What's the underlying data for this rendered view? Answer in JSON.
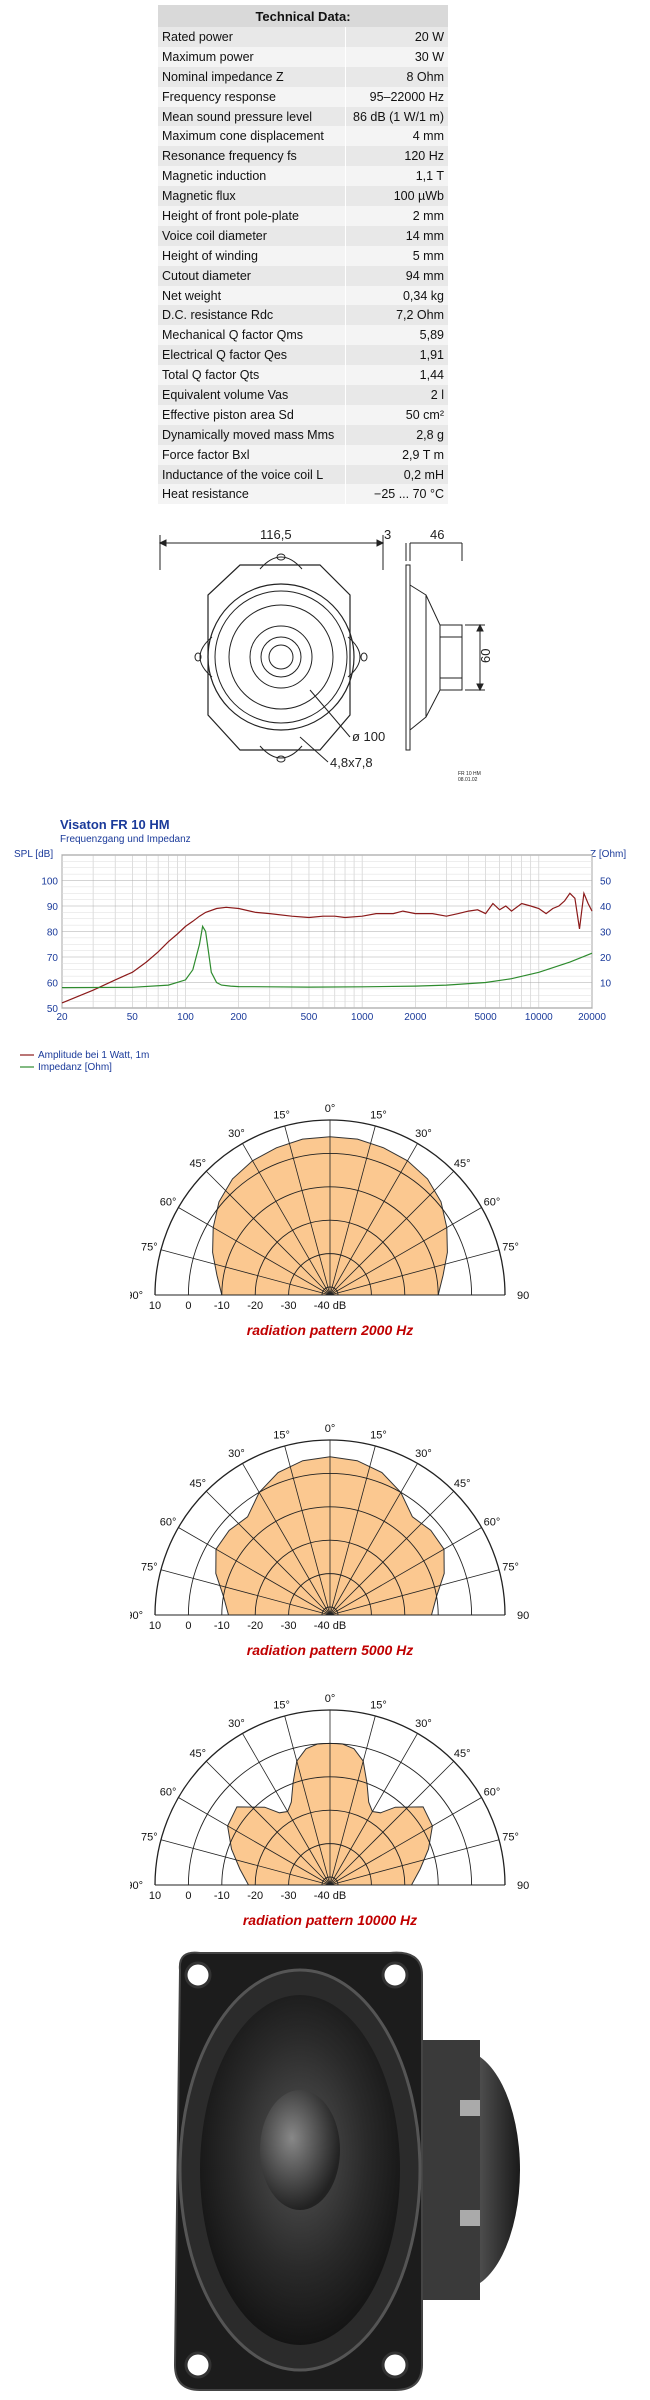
{
  "technical_data": {
    "title": "Technical Data:",
    "rows": [
      [
        "Rated power",
        "20 W"
      ],
      [
        "Maximum power",
        "30 W"
      ],
      [
        "Nominal impedance Z",
        "8 Ohm"
      ],
      [
        "Frequency response",
        "95–22000 Hz"
      ],
      [
        "Mean sound pressure level",
        "86 dB (1 W/1 m)"
      ],
      [
        "Maximum cone displacement",
        "4 mm"
      ],
      [
        "Resonance frequency fs",
        "120 Hz"
      ],
      [
        "Magnetic induction",
        "1,1 T"
      ],
      [
        "Magnetic flux",
        "100 µWb"
      ],
      [
        "Height of front pole-plate",
        "2 mm"
      ],
      [
        "Voice coil diameter",
        "14 mm"
      ],
      [
        "Height of winding",
        "5 mm"
      ],
      [
        "Cutout diameter",
        "94 mm"
      ],
      [
        "Net weight",
        "0,34 kg"
      ],
      [
        "D.C. resistance Rdc",
        "7,2 Ohm"
      ],
      [
        "Mechanical Q factor Qms",
        "5,89"
      ],
      [
        "Electrical Q factor Qes",
        "1,91"
      ],
      [
        "Total Q factor Qts",
        "1,44"
      ],
      [
        "Equivalent volume Vas",
        "2 l"
      ],
      [
        "Effective piston area Sd",
        "50 cm²"
      ],
      [
        "Dynamically moved mass Mms",
        "2,8 g"
      ],
      [
        "Force factor Bxl",
        "2,9 T m"
      ],
      [
        "Inductance of the voice coil L",
        "0,2 mH"
      ],
      [
        "Heat resistance",
        "−25 ... 70 °C"
      ]
    ]
  },
  "drawing": {
    "dim_width": "116,5",
    "dim_front": "3",
    "dim_depth": "46",
    "dim_height": "60",
    "dim_diameter": "ø 100",
    "dim_holes": "4,8x7,8",
    "stamp_line1": "FR 10 HM",
    "stamp_line2": "08.01.02"
  },
  "chart_data": [
    {
      "type": "line",
      "title": "Visaton FR 10 HM",
      "subtitle": "Frequenzgang und Impedanz",
      "ylabel": "SPL [dB]",
      "y2label": "Z [Ohm]",
      "x_scale": "log",
      "xlim": [
        20,
        20000
      ],
      "ylim": [
        50,
        110
      ],
      "y2lim": [
        0,
        60
      ],
      "x_ticks": [
        20,
        50,
        100,
        200,
        500,
        1000,
        2000,
        5000,
        10000,
        20000
      ],
      "x_tick_labels": [
        "20",
        "50",
        "100",
        "200",
        "500",
        "1000",
        "2000",
        "5000",
        "10000",
        "20000"
      ],
      "y_ticks": [
        50,
        60,
        70,
        80,
        90,
        100
      ],
      "y2_ticks": [
        10,
        20,
        30,
        40,
        50
      ],
      "grid": true,
      "legend_position": "bottom-left",
      "series": [
        {
          "name": "Amplitude bei 1 Watt, 1m",
          "color": "#8b1a1a",
          "axis": "left",
          "x": [
            20,
            30,
            40,
            50,
            60,
            70,
            80,
            90,
            100,
            110,
            120,
            130,
            150,
            170,
            200,
            250,
            300,
            400,
            500,
            600,
            700,
            800,
            1000,
            1200,
            1500,
            1700,
            2000,
            2500,
            3000,
            3500,
            4000,
            4500,
            5000,
            5500,
            6000,
            6500,
            7000,
            8000,
            9000,
            10000,
            11000,
            12000,
            13000,
            14000,
            15000,
            16000,
            17000,
            18000,
            19000,
            20000
          ],
          "y": [
            52,
            57,
            61,
            64,
            68,
            72,
            76,
            79,
            82,
            84,
            86,
            87.5,
            89,
            89.5,
            89,
            87.5,
            87,
            86,
            85.5,
            86,
            86,
            85.5,
            86,
            87,
            87,
            88,
            87,
            87,
            86,
            87,
            88,
            88.5,
            87,
            91,
            88.5,
            90,
            88,
            91,
            90,
            89,
            87,
            89,
            90,
            92,
            95,
            93,
            81,
            95,
            91,
            88
          ]
        },
        {
          "name": "Impedanz [Ohm]",
          "color": "#2e8b2e",
          "axis": "right",
          "x": [
            20,
            50,
            80,
            100,
            110,
            120,
            125,
            130,
            135,
            140,
            150,
            160,
            180,
            200,
            300,
            500,
            1000,
            2000,
            3000,
            5000,
            7000,
            10000,
            15000,
            20000
          ],
          "y": [
            8.0,
            8.1,
            9.0,
            11.0,
            15.0,
            25.0,
            32.0,
            30.0,
            22.0,
            14.0,
            10.0,
            9.0,
            8.6,
            8.4,
            8.3,
            8.2,
            8.3,
            8.6,
            9.0,
            10.0,
            11.5,
            14.0,
            18.0,
            21.5
          ]
        }
      ]
    },
    {
      "type": "polar",
      "title": "radiation pattern 2000 Hz",
      "angle_labels": [
        "0°",
        "15°",
        "30°",
        "45°",
        "60°",
        "75°",
        "90°"
      ],
      "radial_labels": [
        "10",
        "0",
        "-10",
        "-20",
        "-30",
        "-40 dB"
      ],
      "angles_deg": [
        0,
        10,
        20,
        30,
        40,
        50,
        60,
        70,
        80,
        90
      ],
      "level_db": [
        5,
        5,
        4.5,
        4,
        3,
        1,
        -2,
        -5,
        -8,
        -10
      ],
      "fill_color": "#fbc890"
    },
    {
      "type": "polar",
      "title": "radiation pattern 5000 Hz",
      "angle_labels": [
        "0°",
        "15°",
        "30°",
        "45°",
        "60°",
        "75°",
        "90°"
      ],
      "radial_labels": [
        "10",
        "0",
        "-10",
        "-20",
        "-30",
        "-40 dB"
      ],
      "angles_deg": [
        0,
        10,
        20,
        30,
        40,
        50,
        60,
        70,
        80,
        90
      ],
      "level_db": [
        5,
        4.5,
        3,
        0,
        -4,
        -3,
        -3,
        -6,
        -10,
        -12
      ],
      "fill_color": "#fbc890"
    },
    {
      "type": "polar",
      "title": "radiation pattern 10000 Hz",
      "angle_labels": [
        "0°",
        "15°",
        "30°",
        "45°",
        "60°",
        "75°",
        "90°"
      ],
      "radial_labels": [
        "10",
        "0",
        "-10",
        "-20",
        "-30",
        "-40 dB"
      ],
      "angles_deg": [
        0,
        5,
        10,
        15,
        20,
        25,
        30,
        35,
        40,
        50,
        60,
        70,
        80,
        90
      ],
      "level_db": [
        0,
        0,
        -1,
        -4,
        -10,
        -15,
        -17,
        -16,
        -12,
        -6,
        -7,
        -11,
        -15,
        -18
      ],
      "fill_color": "#fbc890"
    }
  ]
}
